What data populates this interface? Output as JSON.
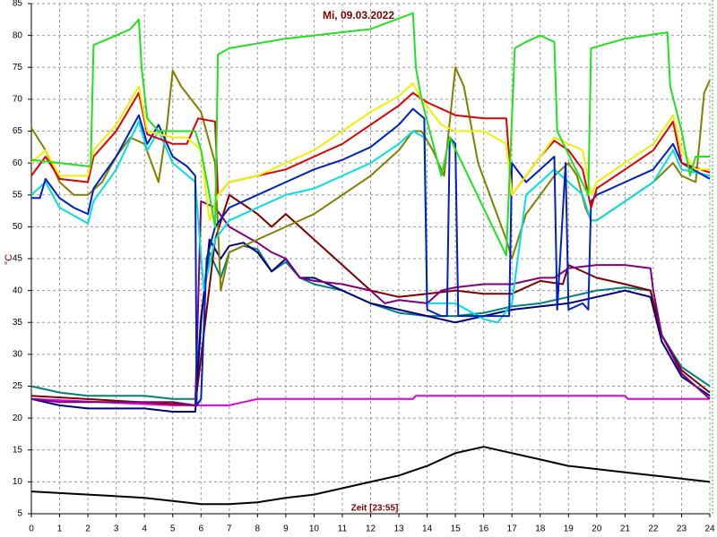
{
  "chart_data": {
    "type": "line",
    "title": "Mi, 09.03.2022",
    "y_label": "°C",
    "x_label": "Zeit [23:55]",
    "xlim": [
      0,
      24
    ],
    "ylim": [
      5,
      85
    ],
    "xticks": [
      0,
      1,
      2,
      3,
      4,
      5,
      6,
      7,
      8,
      9,
      10,
      11,
      12,
      13,
      14,
      15,
      16,
      17,
      18,
      19,
      20,
      21,
      22,
      23,
      24
    ],
    "yticks": [
      5,
      10,
      15,
      20,
      25,
      30,
      35,
      40,
      45,
      50,
      55,
      60,
      65,
      70,
      75,
      80,
      85
    ],
    "grid": true,
    "series": [
      {
        "color": "#000000",
        "x": [
          0,
          2,
          4,
          5,
          6,
          7,
          8,
          9,
          10,
          11,
          12,
          13,
          14,
          15,
          16,
          17,
          18,
          19,
          20,
          21,
          22,
          23,
          24
        ],
        "values": [
          8.5,
          8,
          7.5,
          7,
          6.5,
          6.5,
          6.8,
          7.5,
          8,
          9,
          10,
          11,
          12.5,
          14.5,
          15.5,
          14.5,
          13.5,
          12.5,
          12,
          11.5,
          11,
          10.5,
          10
        ]
      },
      {
        "color": "#e000e0",
        "x": [
          0,
          5,
          5.8,
          7,
          7.5,
          8,
          10,
          13.5,
          13.6,
          20,
          21,
          21.1,
          24
        ],
        "values": [
          23,
          22,
          22,
          22,
          22.5,
          23,
          23,
          23,
          23.5,
          23.5,
          23.5,
          23,
          23
        ]
      },
      {
        "color": "#008080",
        "x": [
          0,
          1,
          2,
          3,
          4,
          5,
          5.8,
          6,
          6.3,
          6.7,
          7,
          7.5,
          8,
          8.5,
          9,
          9.5,
          10,
          11,
          12,
          13,
          14,
          15,
          16,
          17,
          18,
          19,
          20,
          21,
          21.9,
          22.3,
          23,
          24
        ],
        "values": [
          25,
          24,
          23.5,
          23.5,
          23.5,
          23,
          23,
          36,
          46,
          42,
          46,
          47,
          46.5,
          43,
          44.5,
          42,
          41,
          40,
          38,
          36.5,
          36,
          36,
          36.5,
          37.5,
          38,
          39,
          40,
          40.5,
          40,
          33,
          28,
          25
        ]
      },
      {
        "color": "#000080",
        "x": [
          0,
          1,
          2,
          3,
          4,
          5,
          5.8,
          6,
          6.3,
          6.7,
          7,
          7.5,
          8,
          8.5,
          9,
          9.5,
          10,
          11,
          12,
          13,
          14,
          15,
          16,
          17,
          18,
          19,
          20,
          21,
          21.9,
          22.3,
          23,
          24
        ],
        "values": [
          23,
          22,
          21.5,
          21.5,
          21.5,
          21,
          21,
          35,
          48,
          45,
          47,
          47.5,
          46,
          43,
          45,
          42,
          42,
          40,
          38,
          37,
          36,
          35,
          36,
          37,
          37.5,
          38,
          39,
          40,
          39,
          32,
          26.5,
          23.5
        ]
      },
      {
        "color": "#800000",
        "x": [
          0,
          5.8,
          6.5,
          7,
          8,
          8.5,
          9,
          10,
          11,
          12,
          13,
          14,
          15,
          16,
          17,
          18,
          18.8,
          19,
          20,
          21,
          21.9,
          22.3,
          23,
          24
        ],
        "values": [
          23.5,
          22,
          48,
          55,
          52,
          50,
          52,
          48,
          44,
          40,
          39,
          39.5,
          40,
          39.5,
          39.5,
          41.5,
          41,
          44,
          42,
          41,
          40,
          33,
          27.5,
          24
        ]
      },
      {
        "color": "#800080",
        "x": [
          0,
          1,
          2,
          3,
          4,
          5,
          5.8,
          6,
          6.5,
          7,
          8,
          8.5,
          9,
          9.5,
          10,
          11,
          12,
          12.5,
          13,
          14,
          14.5,
          15,
          16,
          17,
          18,
          18.5,
          19,
          20,
          21,
          21.9,
          22,
          22.3,
          23,
          24
        ],
        "values": [
          23,
          22.5,
          22.5,
          22.5,
          22.5,
          22.5,
          22,
          54,
          53,
          50,
          47.5,
          46,
          45,
          42,
          41.5,
          41,
          40,
          38,
          38.5,
          38,
          40,
          40.5,
          41,
          41,
          42,
          42,
          43.5,
          44,
          44,
          43.5,
          40,
          33,
          27,
          23
        ]
      },
      {
        "color": "#808000",
        "x": [
          0,
          0.5,
          1,
          1.5,
          2,
          2.5,
          3,
          3.5,
          4,
          4.5,
          4.8,
          5,
          5.3,
          6,
          6.5,
          6.7,
          7,
          8,
          9,
          10,
          11,
          12,
          13,
          13.5,
          13.8,
          14.2,
          14.6,
          15,
          15.3,
          15.8,
          16.8,
          17,
          17.5,
          18,
          18.5,
          19,
          19.3,
          19.6,
          19.8,
          20,
          21,
          22,
          22.7,
          23,
          23.5,
          23.8,
          24
        ],
        "values": [
          65.5,
          62,
          57,
          55,
          55,
          57,
          61,
          64,
          63,
          57,
          66,
          74.5,
          72,
          68,
          60,
          40,
          46,
          48,
          50,
          52,
          55,
          58,
          62,
          65,
          65,
          62,
          58,
          75,
          72,
          60,
          48,
          45,
          52,
          55,
          58,
          60,
          58,
          53,
          51,
          51,
          54,
          57,
          60,
          58,
          57,
          71,
          73
        ]
      },
      {
        "color": "#00e0e0",
        "x": [
          0,
          0.5,
          1,
          2,
          2.2,
          3,
          3.8,
          4.1,
          4.5,
          5,
          5.8,
          6.1,
          6.5,
          7,
          8,
          9,
          10,
          11,
          12,
          13,
          13.5,
          13.9,
          14,
          15,
          16,
          16.5,
          17,
          17.5,
          18,
          18.5,
          19,
          19.5,
          19.8,
          20,
          21,
          22,
          22.7,
          23,
          24
        ],
        "values": [
          55,
          57,
          53,
          50.5,
          54,
          59,
          66.5,
          62,
          65,
          60,
          57,
          40,
          48,
          51,
          53,
          55,
          56,
          58,
          60,
          63,
          65,
          64,
          38,
          38,
          35.5,
          35,
          38,
          55,
          57,
          59,
          57,
          55,
          51,
          51,
          54,
          57,
          62,
          59,
          58
        ]
      },
      {
        "color": "#0020c0",
        "x": [
          0,
          0.3,
          0.5,
          1,
          1.5,
          2,
          2.2,
          3,
          3.8,
          4.1,
          4.5,
          5,
          5.5,
          5.8,
          5.85,
          6,
          6.2,
          6.5,
          7,
          8,
          9,
          10,
          11,
          12,
          13,
          13.5,
          13.9,
          14,
          14.5,
          14.7,
          14.8,
          15,
          15.1,
          16,
          16.9,
          17,
          17.5,
          18,
          18.5,
          18.6,
          18.9,
          19,
          19.5,
          19.7,
          19.8,
          20,
          21,
          22,
          22.7,
          23,
          24
        ],
        "values": [
          54.5,
          54.5,
          57.5,
          54.5,
          53,
          52,
          56,
          61,
          67.5,
          63,
          66,
          61,
          59.5,
          58,
          22,
          23,
          45,
          50,
          53,
          55,
          57,
          59,
          60.5,
          62.5,
          66,
          68.5,
          67,
          37,
          36,
          36,
          64,
          63,
          36,
          36,
          36,
          60,
          57,
          59,
          61,
          37,
          60,
          37,
          38,
          37,
          54,
          55,
          57,
          59,
          63,
          60,
          57.5
        ]
      },
      {
        "color": "#e00000",
        "x": [
          0,
          0.5,
          1,
          2,
          2.2,
          3,
          3.8,
          4.1,
          5,
          5.5,
          5.9,
          6.5,
          6.6,
          7,
          8,
          9,
          10,
          11,
          12,
          13,
          13.5,
          14,
          15,
          16,
          16.8,
          17,
          17.5,
          18,
          18.5,
          19,
          19.5,
          19.8,
          20,
          21,
          22,
          22.7,
          23,
          24
        ],
        "values": [
          58,
          61,
          57.5,
          57,
          61,
          65,
          71,
          64.5,
          63,
          63,
          67,
          66.5,
          55,
          57,
          58,
          59,
          61,
          63,
          66,
          69,
          71,
          69.5,
          67.5,
          67,
          67,
          55,
          58,
          61,
          63.5,
          62,
          59,
          53,
          56,
          59,
          62,
          66.5,
          60,
          58.5
        ]
      },
      {
        "color": "#f0f000",
        "x": [
          0,
          0.5,
          1,
          2,
          2.2,
          3,
          3.8,
          4.1,
          5,
          5.5,
          6,
          6.3,
          6.6,
          7,
          8,
          9,
          10,
          11,
          12,
          13,
          13.5,
          13.8,
          14.5,
          15,
          16,
          16.8,
          17,
          17.5,
          18,
          18.5,
          19,
          19.5,
          19.8,
          20,
          21,
          22,
          22.7,
          23,
          23.5,
          24
        ],
        "values": [
          60,
          62,
          58,
          58,
          62,
          66,
          72,
          65,
          64,
          64,
          62,
          51,
          55,
          57,
          58,
          60,
          62,
          65,
          68,
          70.5,
          72.5,
          70,
          66,
          65,
          65,
          63,
          55,
          58,
          61,
          64,
          63,
          62,
          55,
          57,
          60,
          63,
          67.5,
          62,
          59,
          59
        ]
      },
      {
        "color": "#20e020",
        "x": [
          0,
          2,
          2.1,
          2.2,
          3,
          3.5,
          3.8,
          3.9,
          4.1,
          4.5,
          5.8,
          6,
          6.3,
          6.5,
          6.6,
          7,
          9,
          10,
          12,
          13.5,
          13.6,
          13.8,
          14.5,
          14.8,
          16.8,
          17.1,
          17.5,
          18,
          18.5,
          18.6,
          19.7,
          19.8,
          21,
          22.5,
          22.6,
          23,
          23.3,
          23.5,
          24
        ],
        "values": [
          60.5,
          59.5,
          59.5,
          78.5,
          80,
          81,
          82.5,
          75,
          67,
          65,
          65,
          62,
          55,
          50,
          77,
          78,
          79.5,
          80,
          81,
          83.5,
          75,
          70,
          58,
          64,
          45.5,
          78,
          79,
          80,
          79,
          65,
          55,
          78,
          79.5,
          80.5,
          72,
          65,
          58,
          61,
          61
        ]
      }
    ]
  }
}
